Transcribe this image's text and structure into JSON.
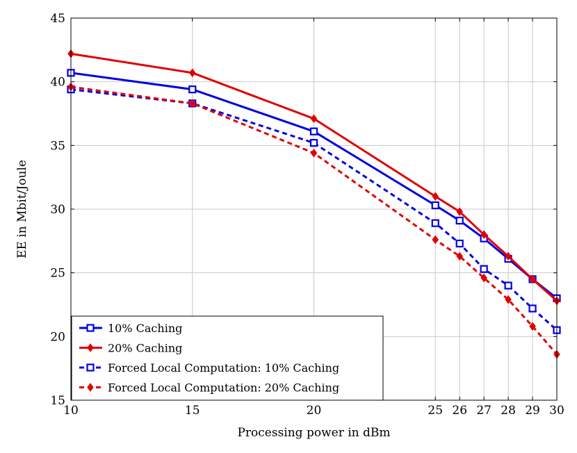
{
  "chart_data": {
    "type": "line",
    "xlabel": "Processing power in dBm",
    "ylabel": "EE in Mbit/Joule",
    "xlim": [
      10,
      30
    ],
    "ylim": [
      15,
      45
    ],
    "grid": true,
    "legend_position": "bottom-left",
    "x": [
      10,
      15,
      20,
      25,
      26,
      27,
      28,
      29,
      30
    ],
    "xticks": [
      "10",
      "15",
      "20",
      "25",
      "26",
      "27",
      "28",
      "29",
      "30"
    ],
    "yticks": [
      "15",
      "20",
      "25",
      "30",
      "35",
      "40",
      "45"
    ],
    "ytick_values": [
      15,
      20,
      25,
      30,
      35,
      40,
      45
    ],
    "series": [
      {
        "name": "10% Caching",
        "values": [
          40.7,
          39.4,
          36.1,
          30.3,
          29.1,
          27.7,
          26.1,
          24.5,
          23.0
        ],
        "color": "#0000e0",
        "dashed": false,
        "marker": "square"
      },
      {
        "name": "20% Caching",
        "values": [
          42.2,
          40.7,
          37.1,
          31.0,
          29.8,
          28.0,
          26.3,
          24.5,
          22.8
        ],
        "color": "#e00000",
        "dashed": false,
        "marker": "diamond"
      },
      {
        "name": "Forced Local Computation: 10% Caching",
        "values": [
          39.4,
          38.3,
          35.2,
          28.9,
          27.3,
          25.3,
          24.0,
          22.2,
          20.5
        ],
        "color": "#0000e0",
        "dashed": true,
        "marker": "square"
      },
      {
        "name": "Forced Local Computation: 20% Caching",
        "values": [
          39.6,
          38.3,
          34.4,
          27.6,
          26.3,
          24.6,
          22.9,
          20.8,
          18.6
        ],
        "color": "#e00000",
        "dashed": true,
        "marker": "diamond"
      }
    ]
  }
}
